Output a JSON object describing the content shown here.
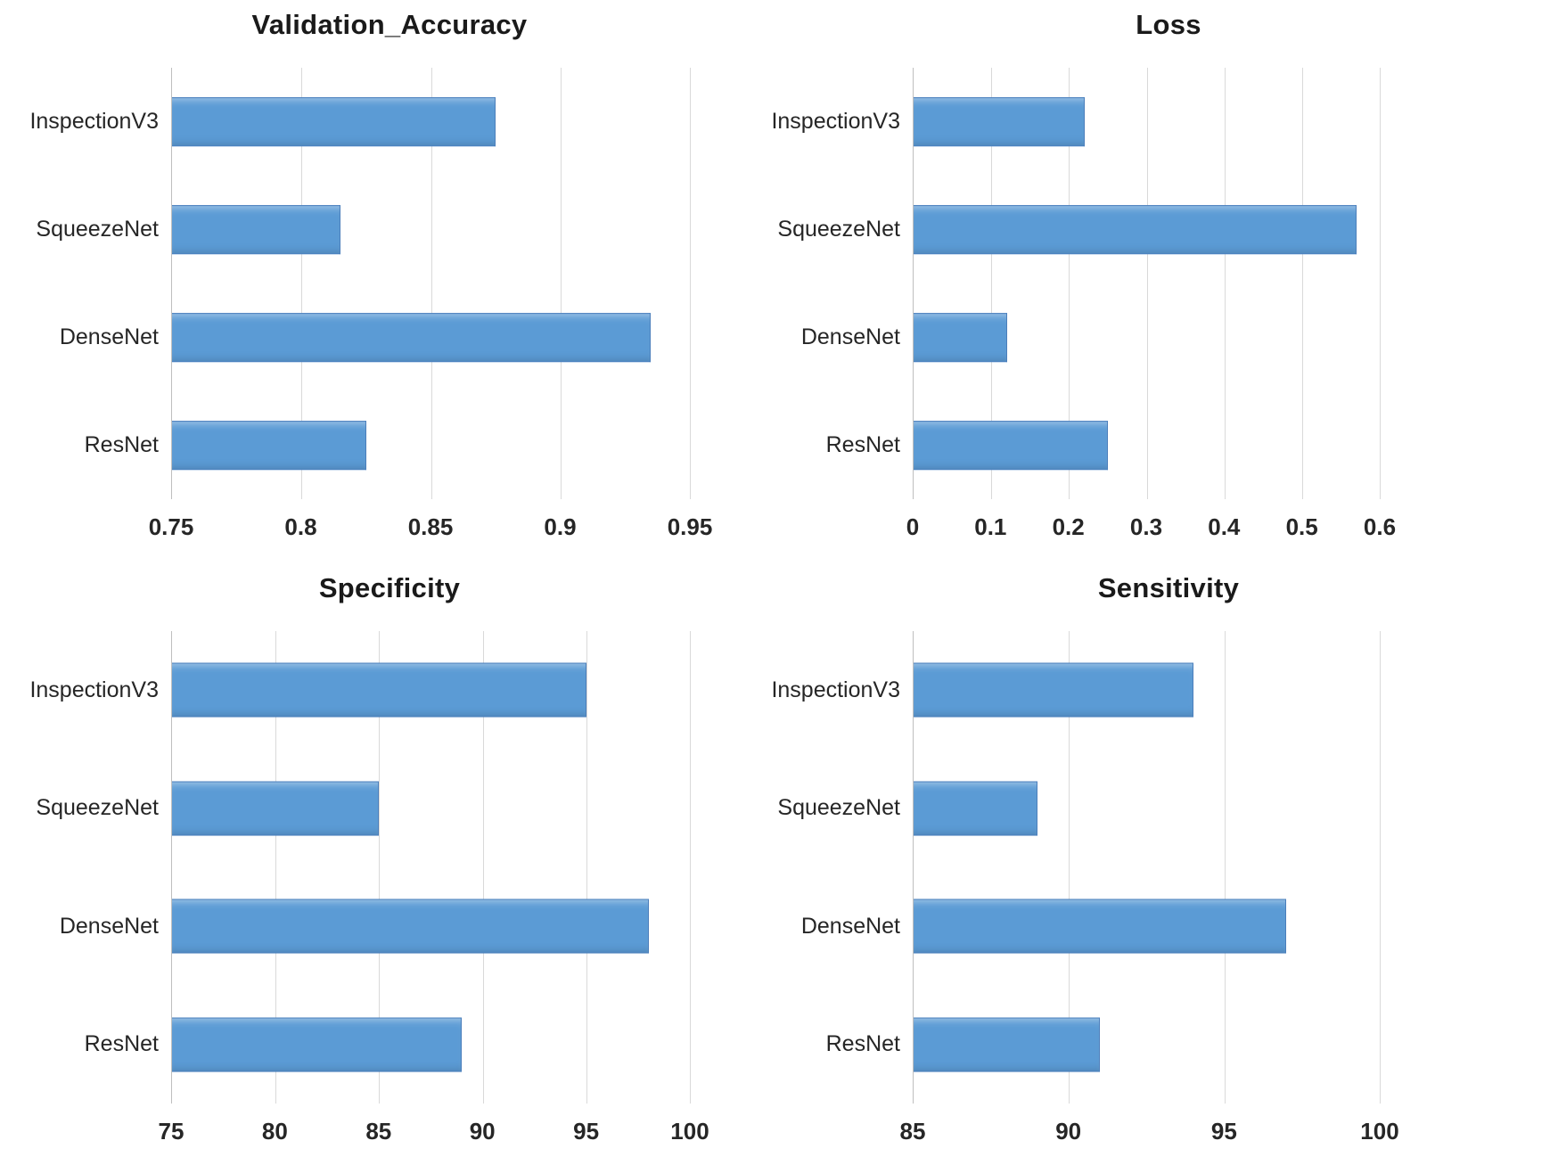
{
  "figure": {
    "kind": "2x2-grid-of-bar-charts",
    "background": "#ffffff"
  },
  "colors": {
    "bar_fill": "#5b9bd5",
    "bar_border": "#4a7ebb",
    "gridline": "#d9d9d9",
    "axis_line": "#bfbfbf",
    "label_text": "#262626",
    "title_text": "#1a1a1a"
  },
  "chart_data": [
    {
      "type": "bar",
      "orientation": "horizontal",
      "title": "Validation_Accuracy",
      "categories": [
        "InspectionV3",
        "SqueezeNet",
        "DenseNet",
        "ResNet"
      ],
      "values": [
        0.875,
        0.815,
        0.935,
        0.825
      ],
      "xlim": [
        0.75,
        0.95
      ],
      "xticks": [
        0.75,
        0.8,
        0.85,
        0.9,
        0.95
      ],
      "xtick_labels": [
        "0.75",
        "0.8",
        "0.85",
        "0.9",
        "0.95"
      ],
      "grid": true,
      "legend": false
    },
    {
      "type": "bar",
      "orientation": "horizontal",
      "title": "Loss",
      "categories": [
        "InspectionV3",
        "SqueezeNet",
        "DenseNet",
        "ResNet"
      ],
      "values": [
        0.22,
        0.57,
        0.12,
        0.25
      ],
      "xlim": [
        0,
        0.6
      ],
      "xticks": [
        0,
        0.1,
        0.2,
        0.3,
        0.4,
        0.5,
        0.6
      ],
      "xtick_labels": [
        "0",
        "0.1",
        "0.2",
        "0.3",
        "0.4",
        "0.5",
        "0.6"
      ],
      "grid": true,
      "legend": false
    },
    {
      "type": "bar",
      "orientation": "horizontal",
      "title": "Specificity",
      "categories": [
        "InspectionV3",
        "SqueezeNet",
        "DenseNet",
        "ResNet"
      ],
      "values": [
        95,
        85,
        98,
        89
      ],
      "xlim": [
        75,
        100
      ],
      "xticks": [
        75,
        80,
        85,
        90,
        95,
        100
      ],
      "xtick_labels": [
        "75",
        "80",
        "85",
        "90",
        "95",
        "100"
      ],
      "grid": true,
      "legend": false
    },
    {
      "type": "bar",
      "orientation": "horizontal",
      "title": "Sensitivity",
      "categories": [
        "InspectionV3",
        "SqueezeNet",
        "DenseNet",
        "ResNet"
      ],
      "values": [
        94,
        89,
        97,
        91
      ],
      "xlim": [
        85,
        100
      ],
      "xticks": [
        85,
        90,
        95,
        100
      ],
      "xtick_labels": [
        "85",
        "90",
        "95",
        "100"
      ],
      "grid": true,
      "legend": false
    }
  ]
}
